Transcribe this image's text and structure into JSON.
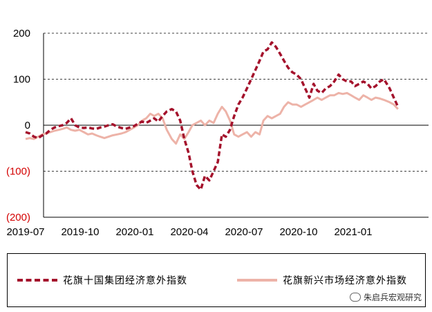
{
  "chart_data": {
    "type": "line",
    "ylim": [
      -200,
      200
    ],
    "yticks": [
      {
        "value": 200,
        "label": "200",
        "color": "#000000"
      },
      {
        "value": 100,
        "label": "100",
        "color": "#000000"
      },
      {
        "value": 0,
        "label": "0",
        "color": "#000000"
      },
      {
        "value": -100,
        "label": "(100)",
        "color": "#d40000"
      },
      {
        "value": -200,
        "label": "(200)",
        "color": "#d40000"
      }
    ],
    "xticks": [
      "2019-07",
      "2019-10",
      "2020-01",
      "2020-04",
      "2020-07",
      "2020-10",
      "2021-01"
    ],
    "grid": {
      "horizontal": true,
      "style": "dashed"
    },
    "legend_position": "bottom",
    "series": [
      {
        "name": "花旗十国集团经济意外指数",
        "color": "#a4122c",
        "style": "dashed",
        "points": [
          [
            "2019-07-01",
            -15
          ],
          [
            "2019-07-08",
            -18
          ],
          [
            "2019-07-15",
            -25
          ],
          [
            "2019-07-22",
            -28
          ],
          [
            "2019-07-29",
            -22
          ],
          [
            "2019-08-05",
            -18
          ],
          [
            "2019-08-12",
            -10
          ],
          [
            "2019-08-19",
            -5
          ],
          [
            "2019-08-26",
            -2
          ],
          [
            "2019-09-02",
            0
          ],
          [
            "2019-09-09",
            5
          ],
          [
            "2019-09-16",
            15
          ],
          [
            "2019-09-23",
            0
          ],
          [
            "2019-09-30",
            -5
          ],
          [
            "2019-10-07",
            -6
          ],
          [
            "2019-10-14",
            -5
          ],
          [
            "2019-10-21",
            -7
          ],
          [
            "2019-10-28",
            -8
          ],
          [
            "2019-11-04",
            -5
          ],
          [
            "2019-11-11",
            -3
          ],
          [
            "2019-11-18",
            0
          ],
          [
            "2019-11-25",
            2
          ],
          [
            "2019-12-02",
            -3
          ],
          [
            "2019-12-09",
            -6
          ],
          [
            "2019-12-16",
            -8
          ],
          [
            "2019-12-23",
            -5
          ],
          [
            "2019-12-30",
            -2
          ],
          [
            "2020-01-06",
            3
          ],
          [
            "2020-01-13",
            8
          ],
          [
            "2020-01-20",
            5
          ],
          [
            "2020-01-27",
            10
          ],
          [
            "2020-02-03",
            15
          ],
          [
            "2020-02-10",
            8
          ],
          [
            "2020-02-17",
            20
          ],
          [
            "2020-02-24",
            30
          ],
          [
            "2020-03-02",
            35
          ],
          [
            "2020-03-09",
            30
          ],
          [
            "2020-03-16",
            10
          ],
          [
            "2020-03-23",
            -30
          ],
          [
            "2020-03-30",
            -60
          ],
          [
            "2020-04-06",
            -100
          ],
          [
            "2020-04-13",
            -130
          ],
          [
            "2020-04-20",
            -140
          ],
          [
            "2020-04-27",
            -110
          ],
          [
            "2020-05-04",
            -120
          ],
          [
            "2020-05-11",
            -100
          ],
          [
            "2020-05-18",
            -80
          ],
          [
            "2020-05-25",
            -20
          ],
          [
            "2020-06-01",
            -25
          ],
          [
            "2020-06-08",
            -10
          ],
          [
            "2020-06-15",
            20
          ],
          [
            "2020-06-22",
            45
          ],
          [
            "2020-06-29",
            60
          ],
          [
            "2020-07-06",
            80
          ],
          [
            "2020-07-13",
            100
          ],
          [
            "2020-07-20",
            120
          ],
          [
            "2020-07-27",
            140
          ],
          [
            "2020-08-03",
            160
          ],
          [
            "2020-08-10",
            165
          ],
          [
            "2020-08-17",
            180
          ],
          [
            "2020-08-24",
            170
          ],
          [
            "2020-08-31",
            155
          ],
          [
            "2020-09-07",
            140
          ],
          [
            "2020-09-14",
            125
          ],
          [
            "2020-09-21",
            115
          ],
          [
            "2020-09-28",
            110
          ],
          [
            "2020-10-05",
            100
          ],
          [
            "2020-10-12",
            80
          ],
          [
            "2020-10-19",
            60
          ],
          [
            "2020-10-26",
            90
          ],
          [
            "2020-11-02",
            75
          ],
          [
            "2020-11-09",
            70
          ],
          [
            "2020-11-16",
            80
          ],
          [
            "2020-11-23",
            85
          ],
          [
            "2020-11-30",
            95
          ],
          [
            "2020-12-07",
            110
          ],
          [
            "2020-12-14",
            100
          ],
          [
            "2020-12-21",
            95
          ],
          [
            "2020-12-28",
            95
          ],
          [
            "2021-01-04",
            85
          ],
          [
            "2021-01-11",
            90
          ],
          [
            "2021-01-18",
            95
          ],
          [
            "2021-01-25",
            90
          ],
          [
            "2021-02-01",
            80
          ],
          [
            "2021-02-08",
            85
          ],
          [
            "2021-02-15",
            95
          ],
          [
            "2021-02-22",
            100
          ],
          [
            "2021-03-01",
            80
          ],
          [
            "2021-03-08",
            60
          ],
          [
            "2021-03-15",
            40
          ]
        ]
      },
      {
        "name": "花旗新兴市场经济意外指数",
        "color": "#edb3a8",
        "style": "solid",
        "points": [
          [
            "2019-07-01",
            -30
          ],
          [
            "2019-07-08",
            -28
          ],
          [
            "2019-07-15",
            -30
          ],
          [
            "2019-07-22",
            -25
          ],
          [
            "2019-07-29",
            -20
          ],
          [
            "2019-08-05",
            -18
          ],
          [
            "2019-08-12",
            -15
          ],
          [
            "2019-08-19",
            -12
          ],
          [
            "2019-08-26",
            -10
          ],
          [
            "2019-09-02",
            -8
          ],
          [
            "2019-09-09",
            -5
          ],
          [
            "2019-09-16",
            -10
          ],
          [
            "2019-09-23",
            -12
          ],
          [
            "2019-09-30",
            -10
          ],
          [
            "2019-10-07",
            -15
          ],
          [
            "2019-10-14",
            -20
          ],
          [
            "2019-10-21",
            -18
          ],
          [
            "2019-10-28",
            -22
          ],
          [
            "2019-11-04",
            -25
          ],
          [
            "2019-11-11",
            -28
          ],
          [
            "2019-11-18",
            -25
          ],
          [
            "2019-11-25",
            -22
          ],
          [
            "2019-12-02",
            -20
          ],
          [
            "2019-12-09",
            -18
          ],
          [
            "2019-12-16",
            -15
          ],
          [
            "2019-12-23",
            -10
          ],
          [
            "2019-12-30",
            -5
          ],
          [
            "2020-01-06",
            0
          ],
          [
            "2020-01-13",
            10
          ],
          [
            "2020-01-20",
            15
          ],
          [
            "2020-01-27",
            25
          ],
          [
            "2020-02-03",
            20
          ],
          [
            "2020-02-10",
            25
          ],
          [
            "2020-02-17",
            15
          ],
          [
            "2020-02-24",
            -10
          ],
          [
            "2020-03-02",
            -30
          ],
          [
            "2020-03-09",
            -40
          ],
          [
            "2020-03-16",
            -20
          ],
          [
            "2020-03-23",
            -30
          ],
          [
            "2020-03-30",
            -15
          ],
          [
            "2020-04-06",
            0
          ],
          [
            "2020-04-13",
            5
          ],
          [
            "2020-04-20",
            10
          ],
          [
            "2020-04-27",
            0
          ],
          [
            "2020-05-04",
            10
          ],
          [
            "2020-05-11",
            5
          ],
          [
            "2020-05-18",
            25
          ],
          [
            "2020-05-25",
            40
          ],
          [
            "2020-06-01",
            30
          ],
          [
            "2020-06-08",
            10
          ],
          [
            "2020-06-15",
            -20
          ],
          [
            "2020-06-22",
            -25
          ],
          [
            "2020-06-29",
            -20
          ],
          [
            "2020-07-06",
            -15
          ],
          [
            "2020-07-13",
            -25
          ],
          [
            "2020-07-20",
            -15
          ],
          [
            "2020-07-27",
            -20
          ],
          [
            "2020-08-03",
            10
          ],
          [
            "2020-08-10",
            20
          ],
          [
            "2020-08-17",
            15
          ],
          [
            "2020-08-24",
            20
          ],
          [
            "2020-08-31",
            25
          ],
          [
            "2020-09-07",
            40
          ],
          [
            "2020-09-14",
            50
          ],
          [
            "2020-09-21",
            45
          ],
          [
            "2020-09-28",
            45
          ],
          [
            "2020-10-05",
            40
          ],
          [
            "2020-10-12",
            45
          ],
          [
            "2020-10-19",
            50
          ],
          [
            "2020-10-26",
            55
          ],
          [
            "2020-11-02",
            60
          ],
          [
            "2020-11-09",
            55
          ],
          [
            "2020-11-16",
            60
          ],
          [
            "2020-11-23",
            65
          ],
          [
            "2020-11-30",
            65
          ],
          [
            "2020-12-07",
            70
          ],
          [
            "2020-12-14",
            68
          ],
          [
            "2020-12-21",
            70
          ],
          [
            "2020-12-28",
            65
          ],
          [
            "2021-01-04",
            60
          ],
          [
            "2021-01-11",
            55
          ],
          [
            "2021-01-18",
            65
          ],
          [
            "2021-01-25",
            60
          ],
          [
            "2021-02-01",
            55
          ],
          [
            "2021-02-08",
            60
          ],
          [
            "2021-02-15",
            58
          ],
          [
            "2021-02-22",
            55
          ],
          [
            "2021-03-01",
            50
          ],
          [
            "2021-03-08",
            45
          ],
          [
            "2021-03-15",
            35
          ]
        ]
      }
    ]
  },
  "watermark": {
    "text": "朱启兵宏观研究",
    "icon": "wechat-icon"
  }
}
